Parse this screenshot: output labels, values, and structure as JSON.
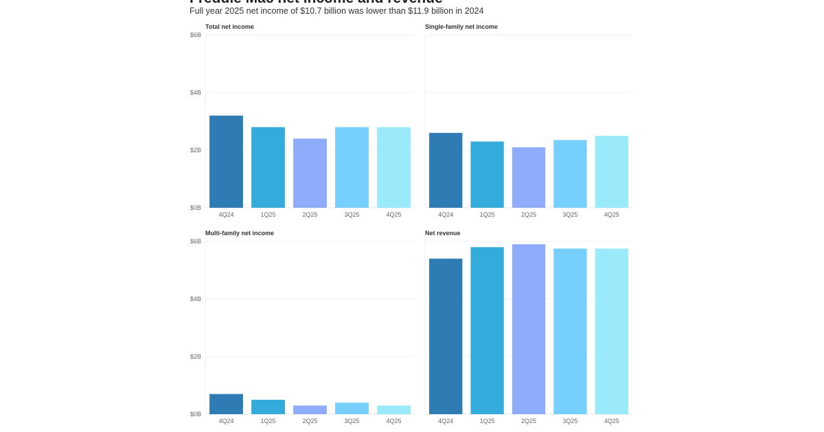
{
  "header": {
    "title": "Freddie Mac net income and revenue",
    "subtitle": "Full year 2025 net income of $10.7 billion was lower than $11.9 billion in 2024"
  },
  "colors": [
    "#2f7bb3",
    "#33acdc",
    "#8eacf9",
    "#76cffc",
    "#9aeafc"
  ],
  "chart_data": [
    {
      "type": "bar",
      "title": "Total net income",
      "categories": [
        "4Q24",
        "1Q25",
        "2Q25",
        "3Q25",
        "4Q25"
      ],
      "values": [
        3.2,
        2.8,
        2.4,
        2.8,
        2.8
      ],
      "ylim": [
        0,
        6
      ],
      "yticks": [
        "$0B",
        "$2B",
        "$4B",
        "$6B"
      ],
      "unit": "billion USD",
      "grid": true
    },
    {
      "type": "bar",
      "title": "Single-family net income",
      "categories": [
        "4Q24",
        "1Q25",
        "2Q25",
        "3Q25",
        "4Q25"
      ],
      "values": [
        2.6,
        2.3,
        2.1,
        2.35,
        2.5
      ],
      "ylim": [
        0,
        6
      ],
      "unit": "billion USD",
      "grid": true
    },
    {
      "type": "bar",
      "title": "Multi-family net income",
      "categories": [
        "4Q24",
        "1Q25",
        "2Q25",
        "3Q25",
        "4Q25"
      ],
      "values": [
        0.7,
        0.5,
        0.3,
        0.4,
        0.3
      ],
      "ylim": [
        0,
        6
      ],
      "yticks": [
        "$0B",
        "$2B",
        "$4B",
        "$6B"
      ],
      "unit": "billion USD",
      "grid": true
    },
    {
      "type": "bar",
      "title": "Net revenue",
      "categories": [
        "4Q24",
        "1Q25",
        "2Q25",
        "3Q25",
        "4Q25"
      ],
      "values": [
        5.4,
        5.8,
        5.9,
        5.75,
        5.75
      ],
      "ylim": [
        0,
        6
      ],
      "unit": "billion USD",
      "grid": true
    }
  ]
}
